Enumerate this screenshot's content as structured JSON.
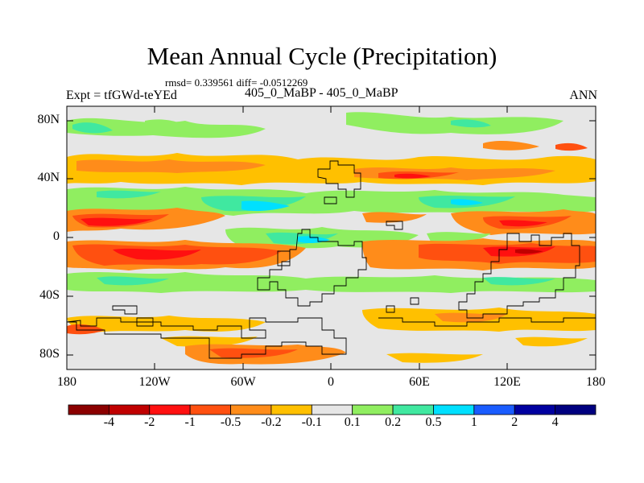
{
  "title": "Mean Annual Cycle (Precipitation)",
  "stats": "rmsd= 0.339561  diff= -0.0512269",
  "left_label": "Expt = tfGWd-teYEd",
  "subtitle": "405_0_MaBP - 405_0_MaBP",
  "season": "ANN",
  "y_ticks": [
    "80N",
    "40N",
    "0",
    "40S",
    "80S"
  ],
  "x_ticks": [
    "180",
    "120W",
    "60W",
    "0",
    "60E",
    "120E",
    "180"
  ],
  "colorbar": {
    "labels": [
      "-4",
      "-2",
      "-1",
      "-0.5",
      "-0.2",
      "-0.1",
      "0.1",
      "0.2",
      "0.5",
      "1",
      "2",
      "4"
    ],
    "colors": [
      "#8b0000",
      "#c00000",
      "#ff1010",
      "#ff5010",
      "#ff8c1a",
      "#ffc000",
      "#e6e6e6",
      "#90ee60",
      "#40e8a0",
      "#00e0ff",
      "#1a5cff",
      "#0000a0"
    ]
  }
}
